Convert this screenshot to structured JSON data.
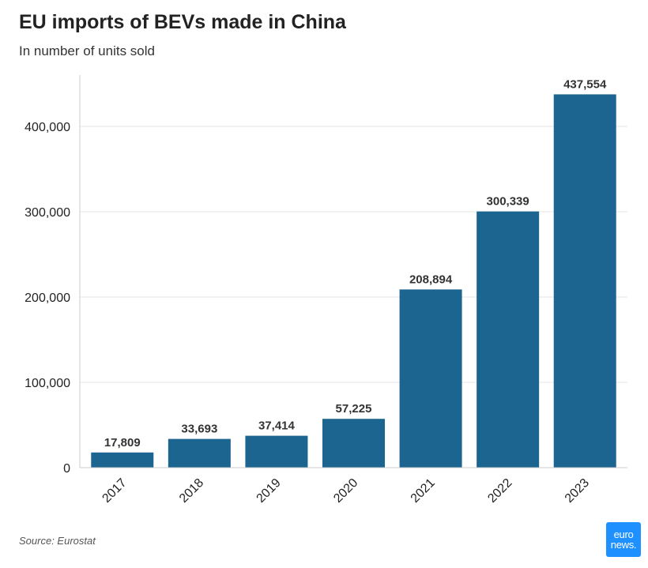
{
  "colors": {
    "bar": "#1c6590",
    "grid": "#e5e5e5",
    "logo_bg": "#1e90ff"
  },
  "chart_data": {
    "type": "bar",
    "title": "EU imports of BEVs made in China",
    "subtitle": "In number of units sold",
    "categories": [
      "2017",
      "2018",
      "2019",
      "2020",
      "2021",
      "2022",
      "2023"
    ],
    "values": [
      17809,
      33693,
      37414,
      57225,
      208894,
      300339,
      437554
    ],
    "data_labels": [
      "17,809",
      "33,693",
      "37,414",
      "57,225",
      "208,894",
      "300,339",
      "437,554"
    ],
    "yticks": [
      0,
      100000,
      200000,
      300000,
      400000
    ],
    "ytick_labels": [
      "0",
      "100,000",
      "200,000",
      "300,000",
      "400,000"
    ],
    "ylim": [
      0,
      450000
    ],
    "grid": true,
    "xlabel": "",
    "ylabel": ""
  },
  "footer": {
    "source": "Source: Eurostat",
    "logo_line1": "euro",
    "logo_line2": "news."
  }
}
